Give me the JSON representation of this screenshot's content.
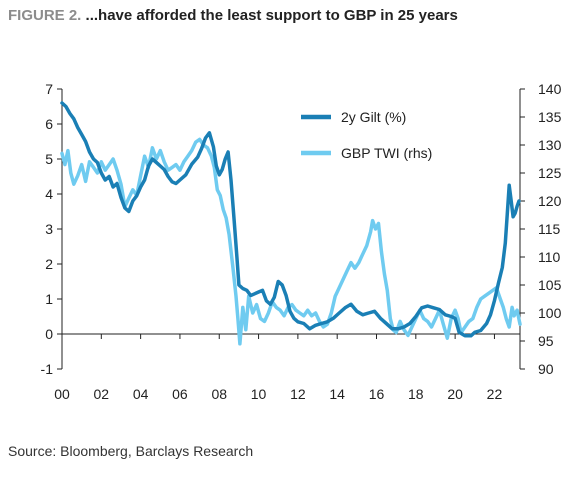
{
  "header": {
    "figure_label": "FIGURE 2.",
    "title": "...have afforded the least support to GBP in 25 years"
  },
  "footer": {
    "source": "Source: Bloomberg, Barclays Research"
  },
  "colors": {
    "gilt": "#1a7fb5",
    "twi": "#6fcbf0",
    "axis": "#222222"
  },
  "chart_data": {
    "type": "line",
    "title": "...have afforded the least support to GBP in 25 years",
    "x_range": [
      2000,
      2023.3
    ],
    "x_ticks": [
      "00",
      "02",
      "04",
      "06",
      "08",
      "10",
      "12",
      "14",
      "16",
      "18",
      "20",
      "22"
    ],
    "y_left": {
      "range": [
        -1,
        7
      ],
      "ticks": [
        -1,
        0,
        1,
        2,
        3,
        4,
        5,
        6,
        7
      ]
    },
    "y_right": {
      "range": [
        90,
        140
      ],
      "ticks": [
        90,
        95,
        100,
        105,
        110,
        115,
        120,
        125,
        130,
        135,
        140
      ]
    },
    "legend_position": "top-right",
    "grid": false,
    "series": [
      {
        "name": "2y Gilt (%)",
        "axis": "left",
        "points": [
          [
            2000.0,
            6.6
          ],
          [
            2000.2,
            6.5
          ],
          [
            2000.4,
            6.3
          ],
          [
            2000.6,
            6.15
          ],
          [
            2000.8,
            5.9
          ],
          [
            2001.0,
            5.7
          ],
          [
            2001.2,
            5.5
          ],
          [
            2001.4,
            5.2
          ],
          [
            2001.6,
            5.0
          ],
          [
            2001.8,
            4.9
          ],
          [
            2002.0,
            4.6
          ],
          [
            2002.2,
            4.4
          ],
          [
            2002.4,
            4.5
          ],
          [
            2002.6,
            4.2
          ],
          [
            2002.8,
            4.3
          ],
          [
            2003.0,
            3.9
          ],
          [
            2003.2,
            3.6
          ],
          [
            2003.4,
            3.5
          ],
          [
            2003.6,
            3.8
          ],
          [
            2003.8,
            3.95
          ],
          [
            2004.0,
            4.2
          ],
          [
            2004.2,
            4.4
          ],
          [
            2004.4,
            4.8
          ],
          [
            2004.6,
            5.0
          ],
          [
            2004.8,
            4.9
          ],
          [
            2005.0,
            4.8
          ],
          [
            2005.2,
            4.7
          ],
          [
            2005.4,
            4.5
          ],
          [
            2005.6,
            4.35
          ],
          [
            2005.8,
            4.3
          ],
          [
            2006.0,
            4.4
          ],
          [
            2006.3,
            4.55
          ],
          [
            2006.6,
            4.85
          ],
          [
            2006.9,
            5.05
          ],
          [
            2007.1,
            5.3
          ],
          [
            2007.3,
            5.6
          ],
          [
            2007.5,
            5.75
          ],
          [
            2007.7,
            5.35
          ],
          [
            2007.85,
            4.8
          ],
          [
            2008.0,
            4.55
          ],
          [
            2008.15,
            4.7
          ],
          [
            2008.3,
            5.0
          ],
          [
            2008.45,
            5.2
          ],
          [
            2008.6,
            4.4
          ],
          [
            2008.75,
            3.3
          ],
          [
            2008.9,
            2.2
          ],
          [
            2009.0,
            1.4
          ],
          [
            2009.2,
            1.3
          ],
          [
            2009.4,
            1.25
          ],
          [
            2009.6,
            1.1
          ],
          [
            2009.8,
            1.15
          ],
          [
            2010.0,
            1.2
          ],
          [
            2010.2,
            1.25
          ],
          [
            2010.4,
            0.95
          ],
          [
            2010.6,
            0.85
          ],
          [
            2010.8,
            1.05
          ],
          [
            2011.0,
            1.5
          ],
          [
            2011.2,
            1.4
          ],
          [
            2011.4,
            1.1
          ],
          [
            2011.6,
            0.65
          ],
          [
            2011.8,
            0.45
          ],
          [
            2012.0,
            0.35
          ],
          [
            2012.3,
            0.3
          ],
          [
            2012.6,
            0.15
          ],
          [
            2012.9,
            0.25
          ],
          [
            2013.2,
            0.3
          ],
          [
            2013.5,
            0.35
          ],
          [
            2013.8,
            0.45
          ],
          [
            2014.1,
            0.6
          ],
          [
            2014.4,
            0.75
          ],
          [
            2014.7,
            0.85
          ],
          [
            2015.0,
            0.65
          ],
          [
            2015.3,
            0.55
          ],
          [
            2015.6,
            0.6
          ],
          [
            2015.9,
            0.65
          ],
          [
            2016.2,
            0.45
          ],
          [
            2016.5,
            0.3
          ],
          [
            2016.8,
            0.15
          ],
          [
            2017.1,
            0.15
          ],
          [
            2017.4,
            0.2
          ],
          [
            2017.7,
            0.3
          ],
          [
            2018.0,
            0.5
          ],
          [
            2018.3,
            0.75
          ],
          [
            2018.6,
            0.8
          ],
          [
            2018.9,
            0.75
          ],
          [
            2019.2,
            0.7
          ],
          [
            2019.5,
            0.55
          ],
          [
            2019.8,
            0.5
          ],
          [
            2020.0,
            0.45
          ],
          [
            2020.2,
            0.05
          ],
          [
            2020.5,
            -0.05
          ],
          [
            2020.8,
            -0.05
          ],
          [
            2021.0,
            0.05
          ],
          [
            2021.3,
            0.1
          ],
          [
            2021.6,
            0.3
          ],
          [
            2021.8,
            0.55
          ],
          [
            2022.0,
            0.95
          ],
          [
            2022.2,
            1.45
          ],
          [
            2022.4,
            1.9
          ],
          [
            2022.55,
            2.6
          ],
          [
            2022.65,
            3.4
          ],
          [
            2022.75,
            4.25
          ],
          [
            2022.85,
            3.8
          ],
          [
            2022.95,
            3.35
          ],
          [
            2023.05,
            3.45
          ],
          [
            2023.15,
            3.65
          ],
          [
            2023.25,
            3.8
          ]
        ]
      },
      {
        "name": "GBP TWI (rhs)",
        "axis": "right",
        "points": [
          [
            2000.0,
            128.5
          ],
          [
            2000.15,
            126.5
          ],
          [
            2000.3,
            129.0
          ],
          [
            2000.45,
            125.0
          ],
          [
            2000.6,
            123.0
          ],
          [
            2000.8,
            124.5
          ],
          [
            2001.0,
            126.5
          ],
          [
            2001.2,
            123.5
          ],
          [
            2001.4,
            127.0
          ],
          [
            2001.6,
            126.0
          ],
          [
            2001.8,
            125.0
          ],
          [
            2002.0,
            127.0
          ],
          [
            2002.2,
            125.5
          ],
          [
            2002.4,
            126.5
          ],
          [
            2002.6,
            127.5
          ],
          [
            2002.8,
            125.5
          ],
          [
            2003.0,
            123.0
          ],
          [
            2003.2,
            119.0
          ],
          [
            2003.4,
            120.5
          ],
          [
            2003.6,
            122.0
          ],
          [
            2003.8,
            121.0
          ],
          [
            2004.0,
            124.5
          ],
          [
            2004.2,
            128.0
          ],
          [
            2004.4,
            126.0
          ],
          [
            2004.6,
            129.5
          ],
          [
            2004.8,
            127.5
          ],
          [
            2005.0,
            129.0
          ],
          [
            2005.2,
            127.0
          ],
          [
            2005.4,
            125.5
          ],
          [
            2005.6,
            126.0
          ],
          [
            2005.8,
            126.5
          ],
          [
            2006.0,
            125.5
          ],
          [
            2006.2,
            127.0
          ],
          [
            2006.4,
            128.0
          ],
          [
            2006.6,
            129.0
          ],
          [
            2006.8,
            130.5
          ],
          [
            2007.0,
            131.0
          ],
          [
            2007.2,
            130.0
          ],
          [
            2007.4,
            129.5
          ],
          [
            2007.6,
            128.0
          ],
          [
            2007.75,
            126.0
          ],
          [
            2007.9,
            122.0
          ],
          [
            2008.05,
            121.0
          ],
          [
            2008.2,
            118.5
          ],
          [
            2008.35,
            117.0
          ],
          [
            2008.5,
            114.0
          ],
          [
            2008.7,
            108.0
          ],
          [
            2008.85,
            103.0
          ],
          [
            2008.95,
            99.0
          ],
          [
            2009.05,
            94.5
          ],
          [
            2009.2,
            101.0
          ],
          [
            2009.35,
            97.0
          ],
          [
            2009.5,
            103.0
          ],
          [
            2009.7,
            100.0
          ],
          [
            2009.9,
            101.5
          ],
          [
            2010.1,
            99.0
          ],
          [
            2010.3,
            98.5
          ],
          [
            2010.5,
            100.0
          ],
          [
            2010.7,
            102.0
          ],
          [
            2010.9,
            101.0
          ],
          [
            2011.1,
            100.5
          ],
          [
            2011.3,
            99.5
          ],
          [
            2011.5,
            101.0
          ],
          [
            2011.7,
            101.5
          ],
          [
            2011.9,
            100.5
          ],
          [
            2012.1,
            100.0
          ],
          [
            2012.3,
            99.5
          ],
          [
            2012.5,
            100.5
          ],
          [
            2012.7,
            99.5
          ],
          [
            2012.9,
            100.0
          ],
          [
            2013.1,
            98.5
          ],
          [
            2013.3,
            97.5
          ],
          [
            2013.5,
            98.0
          ],
          [
            2013.7,
            100.0
          ],
          [
            2013.9,
            103.0
          ],
          [
            2014.1,
            104.5
          ],
          [
            2014.3,
            106.0
          ],
          [
            2014.5,
            107.5
          ],
          [
            2014.7,
            109.0
          ],
          [
            2014.9,
            108.0
          ],
          [
            2015.1,
            109.0
          ],
          [
            2015.3,
            110.5
          ],
          [
            2015.5,
            112.0
          ],
          [
            2015.7,
            114.5
          ],
          [
            2015.8,
            116.5
          ],
          [
            2015.95,
            115.0
          ],
          [
            2016.1,
            116.0
          ],
          [
            2016.25,
            111.0
          ],
          [
            2016.4,
            107.0
          ],
          [
            2016.55,
            104.0
          ],
          [
            2016.7,
            99.0
          ],
          [
            2016.85,
            97.0
          ],
          [
            2017.0,
            96.5
          ],
          [
            2017.2,
            98.5
          ],
          [
            2017.4,
            97.0
          ],
          [
            2017.6,
            96.0
          ],
          [
            2017.8,
            97.5
          ],
          [
            2018.0,
            99.0
          ],
          [
            2018.2,
            100.5
          ],
          [
            2018.4,
            99.0
          ],
          [
            2018.6,
            98.5
          ],
          [
            2018.8,
            97.5
          ],
          [
            2019.0,
            99.0
          ],
          [
            2019.2,
            100.5
          ],
          [
            2019.4,
            98.0
          ],
          [
            2019.6,
            95.5
          ],
          [
            2019.8,
            99.0
          ],
          [
            2020.0,
            100.5
          ],
          [
            2020.15,
            99.0
          ],
          [
            2020.3,
            96.5
          ],
          [
            2020.5,
            97.5
          ],
          [
            2020.7,
            98.5
          ],
          [
            2020.9,
            99.0
          ],
          [
            2021.1,
            101.0
          ],
          [
            2021.3,
            102.5
          ],
          [
            2021.5,
            103.0
          ],
          [
            2021.7,
            103.5
          ],
          [
            2021.9,
            104.0
          ],
          [
            2022.1,
            104.5
          ],
          [
            2022.3,
            102.5
          ],
          [
            2022.45,
            101.0
          ],
          [
            2022.6,
            99.0
          ],
          [
            2022.75,
            97.5
          ],
          [
            2022.9,
            101.0
          ],
          [
            2023.0,
            99.5
          ],
          [
            2023.15,
            100.5
          ],
          [
            2023.3,
            98.0
          ]
        ]
      }
    ]
  }
}
